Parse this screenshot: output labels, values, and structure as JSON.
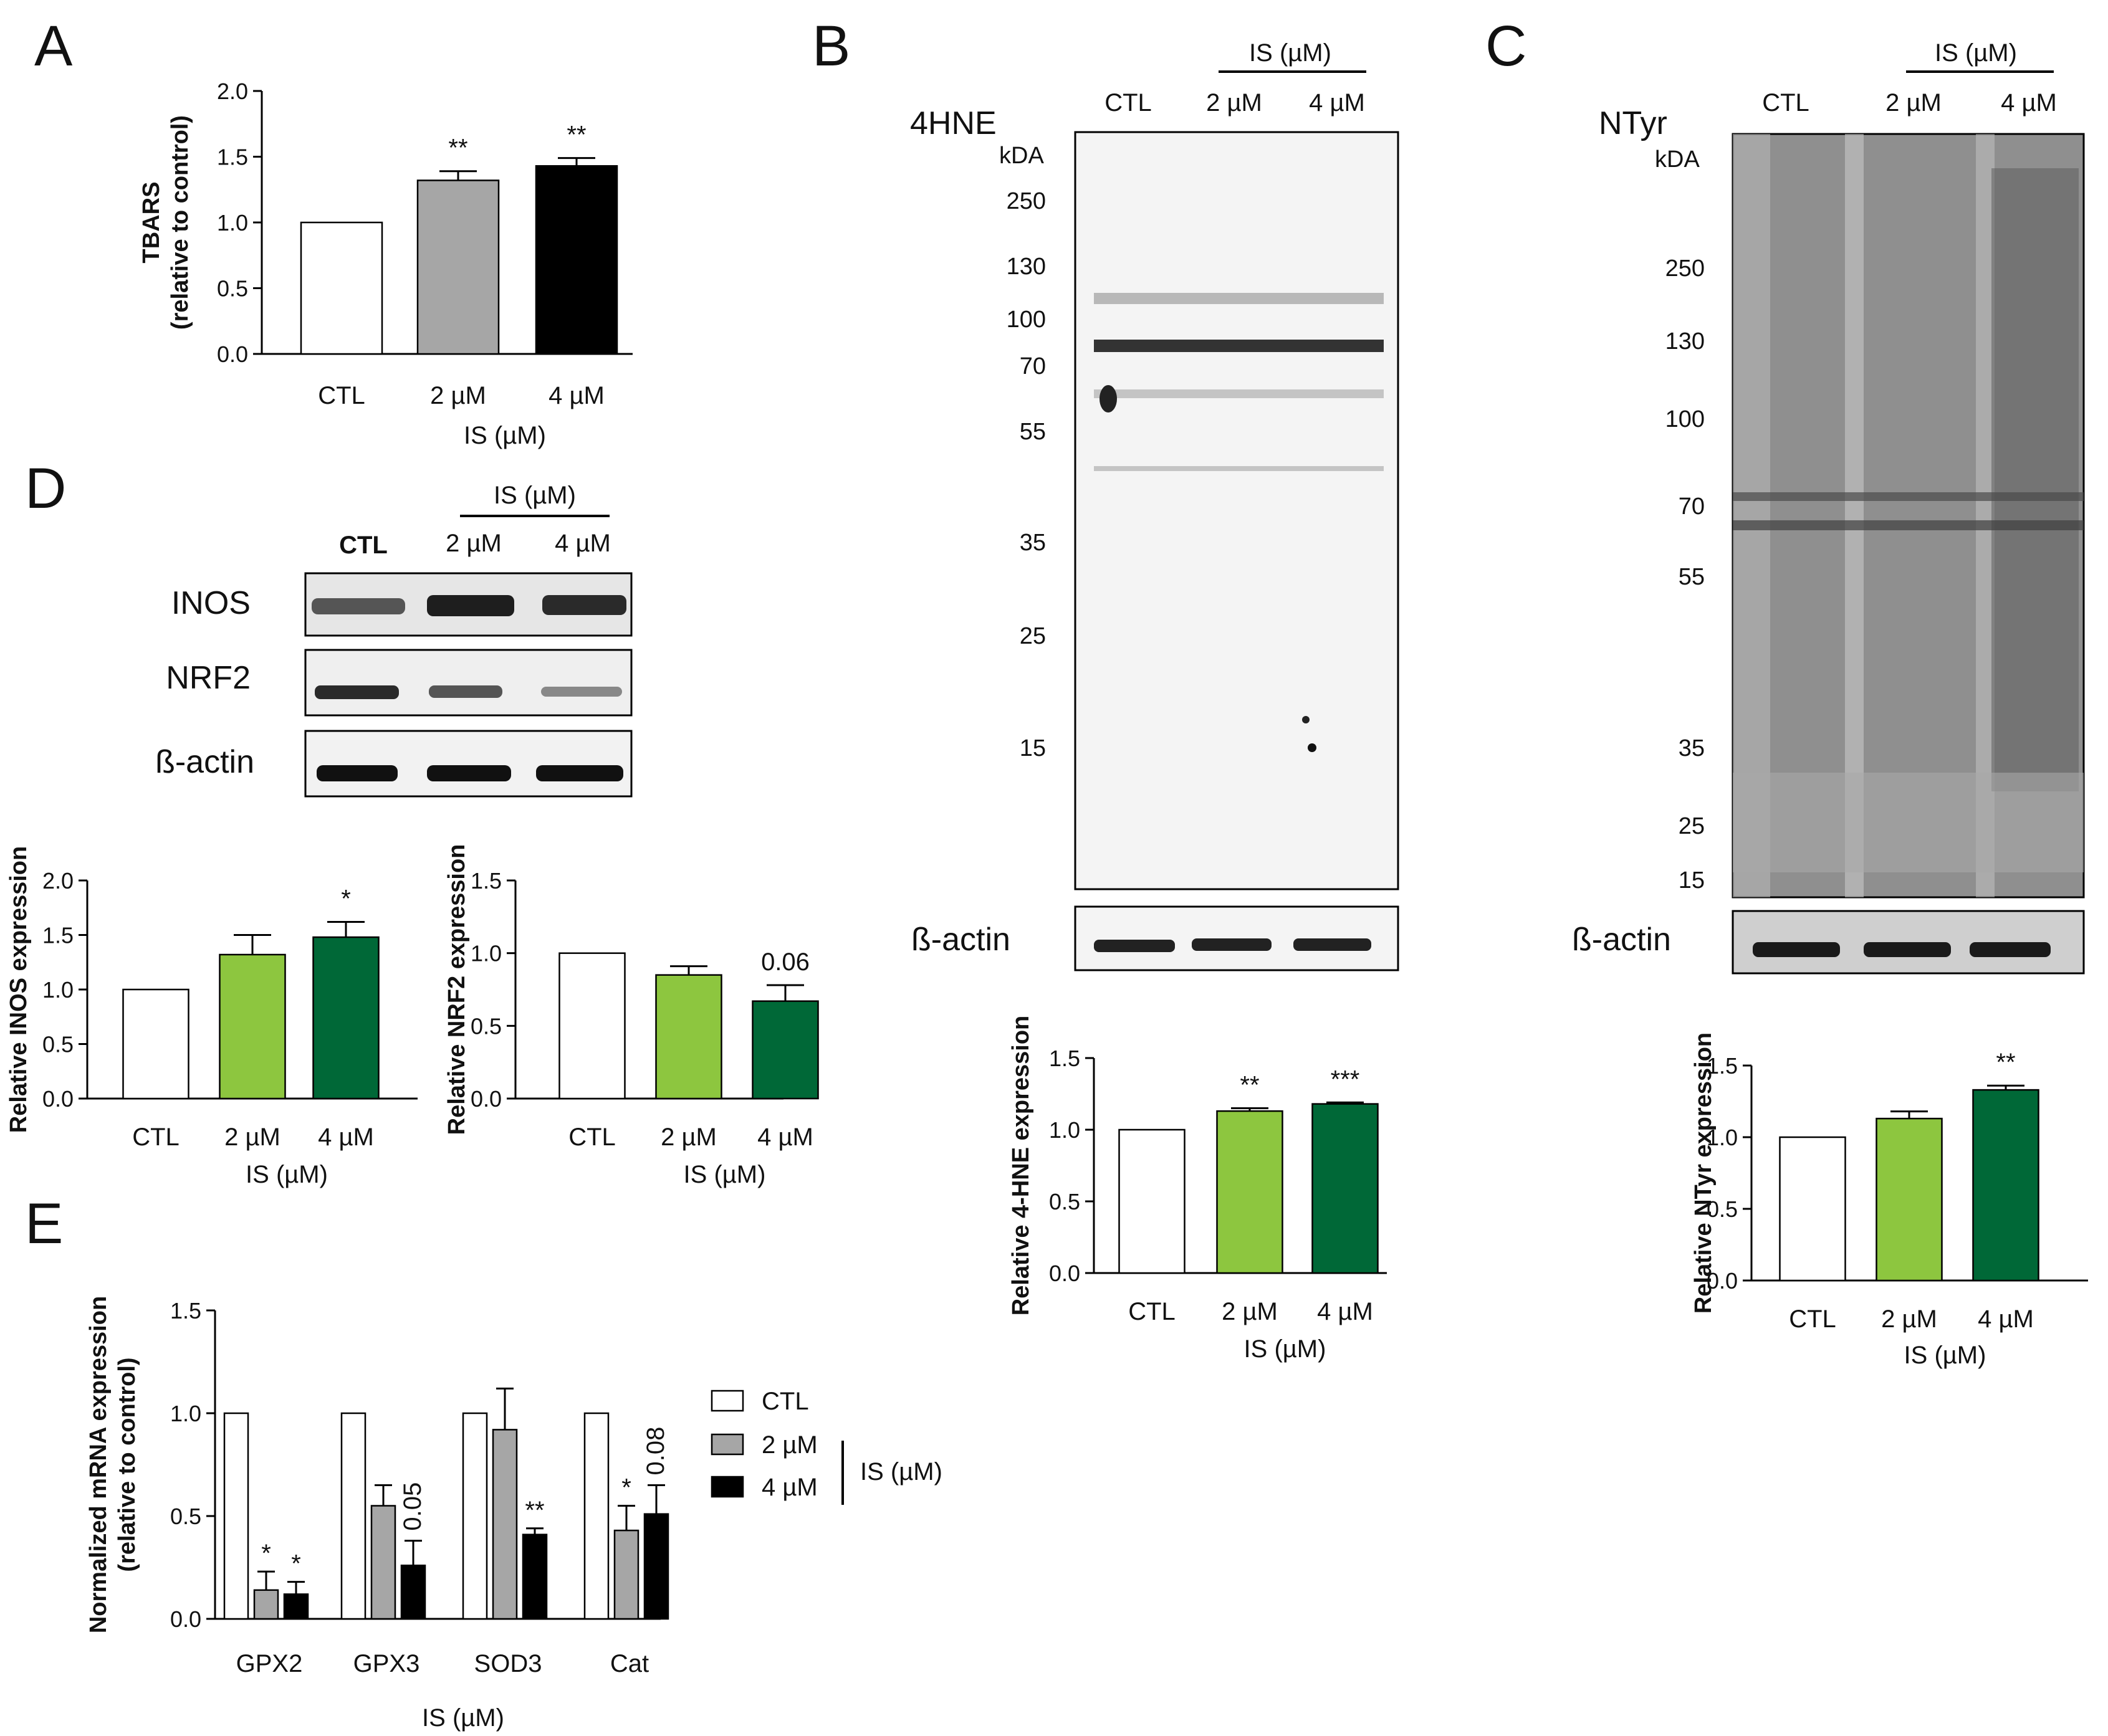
{
  "colors": {
    "white_bar": "#ffffff",
    "grey_bar": "#a6a6a6",
    "black_bar": "#000000",
    "light_green": "#8dc63f",
    "dark_green": "#006837",
    "axis": "#000000"
  },
  "panel_labels": {
    "a": "A",
    "b": "B",
    "c": "C",
    "d": "D",
    "e": "E"
  },
  "blot_b": {
    "header": "IS (µM)",
    "lanes": [
      "CTL",
      "2 µM",
      "4 µM"
    ],
    "label": "4HNE",
    "kda": "kDA",
    "markers": [
      "250",
      "130",
      "100",
      "70",
      "55",
      "35",
      "25",
      "15"
    ],
    "actin": "ß-actin"
  },
  "blot_c": {
    "header": "IS (µM)",
    "lanes": [
      "CTL",
      "2 µM",
      "4 µM"
    ],
    "label": "NTyr",
    "kda": "kDA",
    "markers": [
      "250",
      "130",
      "100",
      "70",
      "55",
      "35",
      "25",
      "15"
    ],
    "actin": "ß-actin"
  },
  "blot_d": {
    "header": "IS (µM)",
    "lanes": [
      "CTL",
      "2 µM",
      "4 µM"
    ],
    "rows": [
      "INOS",
      "NRF2",
      "ß-actin"
    ]
  },
  "chart_data": [
    {
      "id": "A",
      "type": "bar",
      "categories": [
        "CTL",
        "2 µM",
        "4 µM"
      ],
      "values": [
        1.0,
        1.32,
        1.43
      ],
      "errors": [
        0,
        0.07,
        0.06
      ],
      "annotations": [
        "",
        "**",
        "**"
      ],
      "colors": [
        "#ffffff",
        "#a6a6a6",
        "#000000"
      ],
      "ylabel": [
        "TBARS",
        "(relative to control)"
      ],
      "xlabel": "IS (µM)",
      "ylim": [
        0,
        2.0
      ],
      "yticks": [
        "0.0",
        "0.5",
        "1.0",
        "1.5",
        "2.0"
      ]
    },
    {
      "id": "D1",
      "type": "bar",
      "categories": [
        "CTL",
        "2 µM",
        "4 µM"
      ],
      "values": [
        1.0,
        1.32,
        1.48
      ],
      "errors": [
        0,
        0.18,
        0.14
      ],
      "annotations": [
        "",
        "",
        "*"
      ],
      "colors": [
        "#ffffff",
        "#8dc63f",
        "#006837"
      ],
      "ylabel": [
        "Relative INOS expression"
      ],
      "xlabel": "IS (µM)",
      "ylim": [
        0,
        2.0
      ],
      "yticks": [
        "0.0",
        "0.5",
        "1.0",
        "1.5",
        "2.0"
      ]
    },
    {
      "id": "D2",
      "type": "bar",
      "categories": [
        "CTL",
        "2 µM",
        "4 µM"
      ],
      "values": [
        1.0,
        0.85,
        0.67
      ],
      "errors": [
        0,
        0.06,
        0.11
      ],
      "annotations": [
        "",
        "",
        "0.06"
      ],
      "colors": [
        "#ffffff",
        "#8dc63f",
        "#006837"
      ],
      "ylabel": [
        "Relative NRF2 expression"
      ],
      "xlabel": "IS (µM)",
      "ylim": [
        0,
        1.5
      ],
      "yticks": [
        "0.0",
        "0.5",
        "1.0",
        "1.5"
      ]
    },
    {
      "id": "B",
      "type": "bar",
      "categories": [
        "CTL",
        "2 µM",
        "4 µM"
      ],
      "values": [
        1.0,
        1.13,
        1.18
      ],
      "errors": [
        0,
        0.02,
        0.01
      ],
      "annotations": [
        "",
        "**",
        "***"
      ],
      "colors": [
        "#ffffff",
        "#8dc63f",
        "#006837"
      ],
      "ylabel": [
        "Relative 4-HNE expression"
      ],
      "xlabel": "IS (µM)",
      "ylim": [
        0,
        1.5
      ],
      "yticks": [
        "0.0",
        "0.5",
        "1.0",
        "1.5"
      ]
    },
    {
      "id": "C",
      "type": "bar",
      "categories": [
        "CTL",
        "2 µM",
        "4 µM"
      ],
      "values": [
        1.0,
        1.13,
        1.33
      ],
      "errors": [
        0,
        0.05,
        0.03
      ],
      "annotations": [
        "",
        "",
        "**"
      ],
      "colors": [
        "#ffffff",
        "#8dc63f",
        "#006837"
      ],
      "ylabel": [
        "Relative NTyr expression"
      ],
      "xlabel": "IS (µM)",
      "ylim": [
        0,
        1.5
      ],
      "yticks": [
        "0.0",
        "0.5",
        "1.0",
        "1.5"
      ]
    },
    {
      "id": "E",
      "type": "bar",
      "categories": [
        "GPX2",
        "GPX3",
        "SOD3",
        "Cat"
      ],
      "series": [
        {
          "name": "CTL",
          "values": [
            1.0,
            1.0,
            1.0,
            1.0
          ],
          "errors": [
            0,
            0,
            0,
            0
          ],
          "annotations": [
            "",
            "",
            "",
            ""
          ],
          "color": "#ffffff"
        },
        {
          "name": "2 µM",
          "values": [
            0.14,
            0.55,
            0.92,
            0.43
          ],
          "errors": [
            0.09,
            0.1,
            0.2,
            0.12
          ],
          "annotations": [
            "*",
            "",
            "",
            "*"
          ],
          "color": "#a6a6a6"
        },
        {
          "name": "4 µM",
          "values": [
            0.12,
            0.26,
            0.41,
            0.51
          ],
          "errors": [
            0.06,
            0.12,
            0.03,
            0.14
          ],
          "annotations": [
            "*",
            "0.05",
            "**",
            "0.08"
          ],
          "color": "#000000"
        }
      ],
      "legend_group_label": "IS (µM)",
      "legend_position": "right",
      "ylabel": [
        "Normalized mRNA expression",
        "(relative to control)"
      ],
      "xlabel": "IS (µM)",
      "ylim": [
        0,
        1.5
      ],
      "yticks": [
        "0.0",
        "0.5",
        "1.0",
        "1.5"
      ]
    }
  ]
}
